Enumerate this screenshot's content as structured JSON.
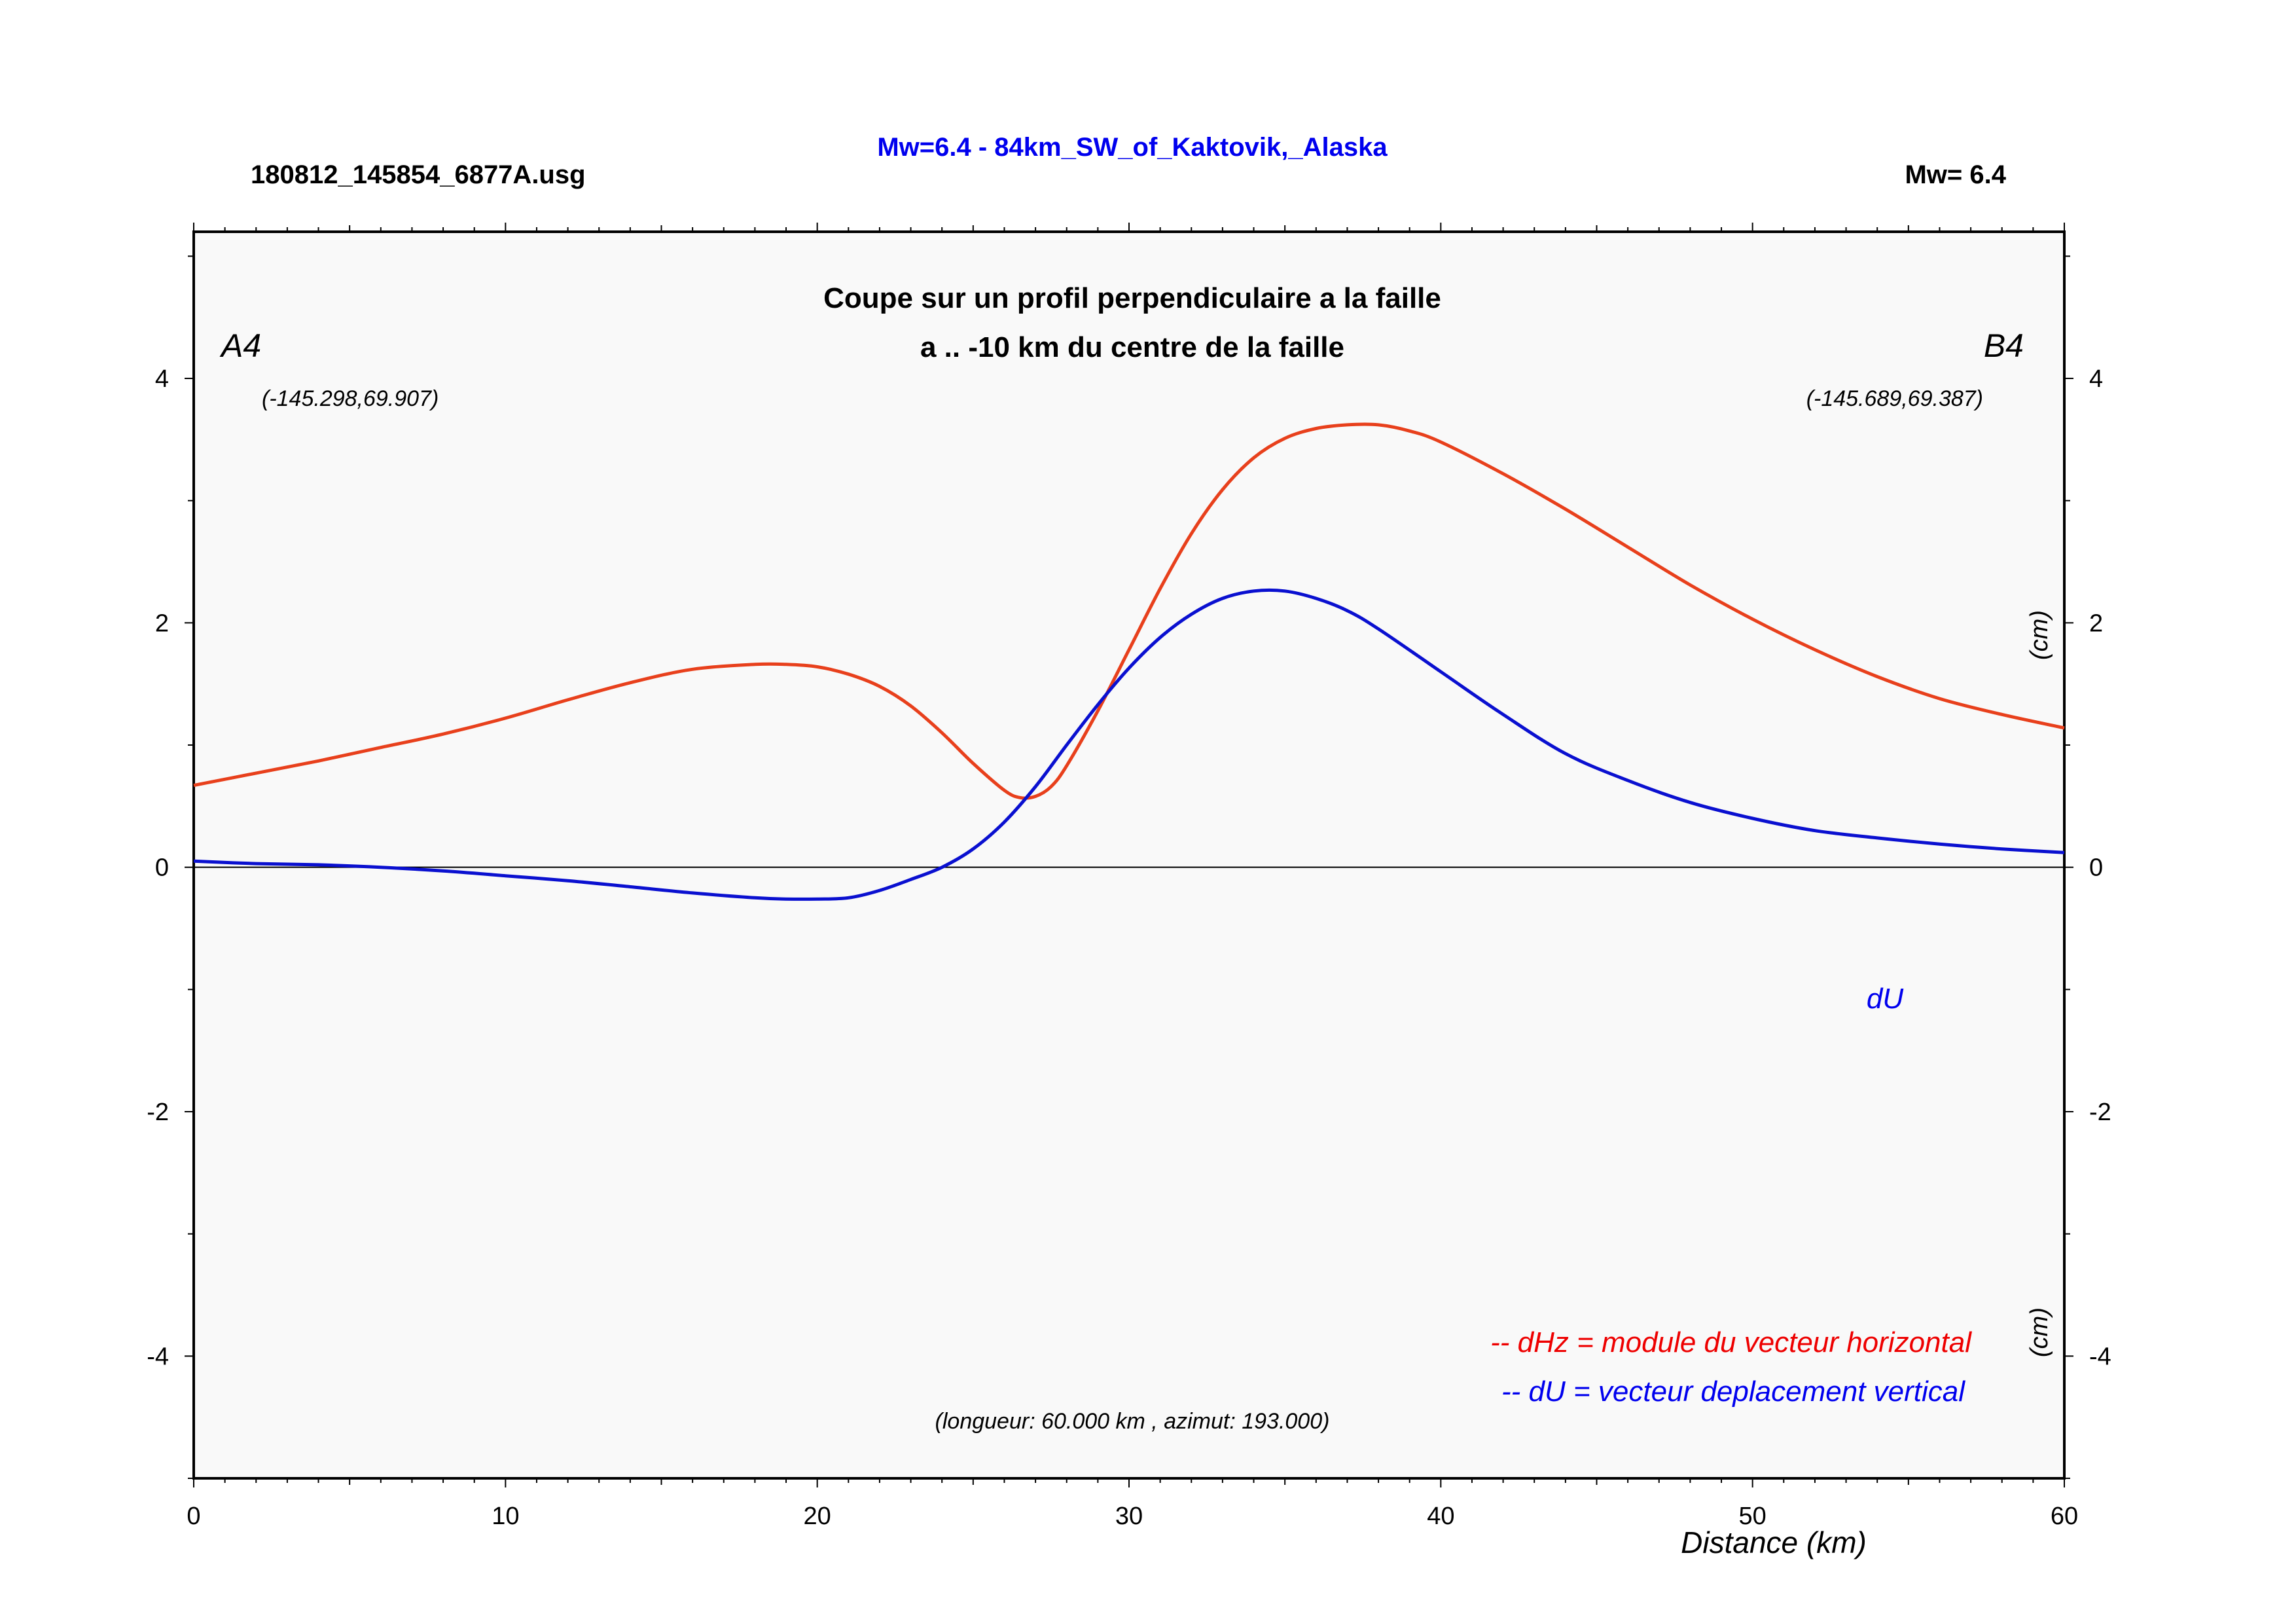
{
  "header": {
    "file_label": "180812_145854_6877A.usg",
    "title": "Mw=6.4 - 84km_SW_of_Kaktovik,_Alaska",
    "magnitude_label": "Mw= 6.4"
  },
  "chart_data": {
    "type": "line",
    "title": "Coupe sur un profil perpendiculaire a la faille",
    "subtitle": "a .. -10 km du centre de la faille",
    "xlabel": "Distance (km)",
    "ylabel_right_upper": "(cm)",
    "ylabel_right_lower": "(cm)",
    "xlim": [
      0,
      60
    ],
    "ylim": [
      -5,
      5.2
    ],
    "x_ticks": [
      0,
      10,
      20,
      30,
      40,
      50,
      60
    ],
    "y_ticks": [
      -4,
      -2,
      0,
      2,
      4
    ],
    "x_tick_labels": [
      "0",
      "10",
      "20",
      "30",
      "40",
      "50",
      "60"
    ],
    "y_tick_labels": [
      "-4",
      "-2",
      "0",
      "2",
      "4"
    ],
    "grid": false,
    "zero_line": true,
    "endpoints": {
      "start_label": "A4",
      "start_coords": "(-145.298,69.907)",
      "end_label": "B4",
      "end_coords": "(-145.689,69.387)"
    },
    "series_tag": "dU",
    "legend": [
      {
        "text": "-- dHz = module du vecteur horizontal",
        "color": "#ee0000"
      },
      {
        "text": "-- dU =  vecteur deplacement vertical",
        "color": "#0000ee"
      }
    ],
    "profile_note": "(longueur: 60.000 km , azimut: 193.000)",
    "series": [
      {
        "key": "dHz",
        "color": "#e8401c",
        "x": [
          0,
          2,
          4,
          6,
          8,
          10,
          12,
          14,
          16,
          18,
          19,
          20,
          21,
          22,
          23,
          24,
          25,
          26,
          26.5,
          27,
          27.5,
          28,
          29,
          30,
          31,
          32,
          33,
          34,
          35,
          36,
          37,
          38,
          39,
          40,
          42,
          44,
          46,
          48,
          50,
          52,
          54,
          56,
          58,
          60
        ],
        "y": [
          0.67,
          0.77,
          0.87,
          0.98,
          1.09,
          1.22,
          1.37,
          1.51,
          1.62,
          1.66,
          1.66,
          1.64,
          1.58,
          1.48,
          1.32,
          1.1,
          0.85,
          0.63,
          0.57,
          0.58,
          0.66,
          0.83,
          1.28,
          1.78,
          2.28,
          2.73,
          3.09,
          3.35,
          3.51,
          3.59,
          3.62,
          3.62,
          3.57,
          3.48,
          3.22,
          2.93,
          2.62,
          2.31,
          2.03,
          1.78,
          1.56,
          1.38,
          1.25,
          1.14
        ]
      },
      {
        "key": "dU",
        "color": "#0a10d0",
        "x": [
          0,
          2,
          4,
          6,
          8,
          10,
          12,
          14,
          16,
          18,
          19,
          20,
          21,
          22,
          23,
          24,
          25,
          26,
          27,
          28,
          29,
          30,
          31,
          32,
          33,
          34,
          35,
          36,
          37,
          38,
          40,
          42,
          44,
          46,
          48,
          50,
          52,
          54,
          56,
          58,
          60
        ],
        "y": [
          0.05,
          0.03,
          0.02,
          0.0,
          -0.03,
          -0.07,
          -0.11,
          -0.16,
          -0.21,
          -0.25,
          -0.26,
          -0.26,
          -0.25,
          -0.19,
          -0.1,
          0.0,
          0.15,
          0.37,
          0.66,
          1.0,
          1.33,
          1.63,
          1.88,
          2.07,
          2.2,
          2.26,
          2.26,
          2.2,
          2.1,
          1.95,
          1.6,
          1.25,
          0.93,
          0.71,
          0.53,
          0.4,
          0.3,
          0.24,
          0.19,
          0.15,
          0.12
        ]
      }
    ]
  }
}
